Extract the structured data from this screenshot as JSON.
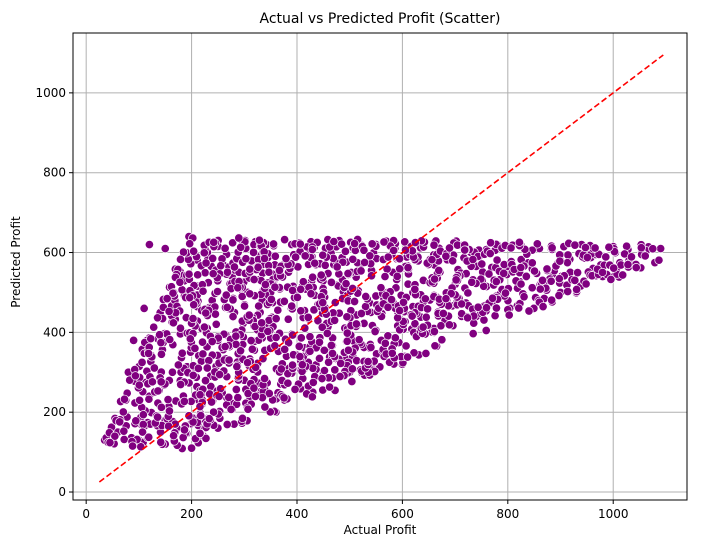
{
  "chart_data": {
    "type": "scatter",
    "title": "Actual vs Predicted Profit (Scatter)",
    "xlabel": "Actual Profit",
    "ylabel": "Predicted Profit",
    "xlim": [
      -25,
      1140
    ],
    "ylim": [
      -20,
      1150
    ],
    "xticks": [
      0,
      200,
      400,
      600,
      800,
      1000
    ],
    "yticks": [
      0,
      200,
      400,
      600,
      800,
      1000
    ],
    "grid": true,
    "colors": {
      "points": "#800080",
      "point_edge": "#ffffff",
      "reference_line": "#ff0000",
      "grid": "#b0b0b0"
    },
    "reference_line": {
      "style": "dashed",
      "x": [
        25,
        1095
      ],
      "y": [
        25,
        1095
      ]
    },
    "point_cloud": {
      "count": 1400,
      "region_vertices": [
        [
          30,
          120
        ],
        [
          195,
          640
        ],
        [
          1095,
          620
        ],
        [
          1090,
          580
        ],
        [
          600,
          320
        ],
        [
          180,
          105
        ]
      ]
    },
    "points": [
      [
        35,
        130
      ],
      [
        60,
        150
      ],
      [
        75,
        230
      ],
      [
        80,
        300
      ],
      [
        90,
        380
      ],
      [
        110,
        460
      ],
      [
        120,
        620
      ],
      [
        150,
        610
      ],
      [
        195,
        640
      ],
      [
        230,
        600
      ],
      [
        300,
        620
      ],
      [
        390,
        620
      ],
      [
        480,
        630
      ],
      [
        570,
        625
      ],
      [
        640,
        620
      ],
      [
        700,
        620
      ],
      [
        780,
        620
      ],
      [
        860,
        610
      ],
      [
        940,
        620
      ],
      [
        1000,
        615
      ],
      [
        1090,
        610
      ],
      [
        1030,
        580
      ],
      [
        980,
        540
      ],
      [
        900,
        500
      ],
      [
        820,
        470
      ],
      [
        740,
        440
      ],
      [
        660,
        400
      ],
      [
        600,
        320
      ],
      [
        560,
        380
      ],
      [
        500,
        300
      ],
      [
        430,
        250
      ],
      [
        360,
        200
      ],
      [
        300,
        180
      ],
      [
        250,
        160
      ],
      [
        200,
        110
      ],
      [
        150,
        120
      ],
      [
        100,
        130
      ],
      [
        180,
        300
      ],
      [
        250,
        380
      ],
      [
        330,
        450
      ],
      [
        420,
        520
      ],
      [
        520,
        560
      ],
      [
        460,
        420
      ],
      [
        380,
        340
      ],
      [
        300,
        280
      ],
      [
        220,
        220
      ],
      [
        150,
        180
      ],
      [
        120,
        240
      ],
      [
        200,
        500
      ],
      [
        280,
        560
      ],
      [
        350,
        500
      ],
      [
        440,
        470
      ],
      [
        540,
        450
      ],
      [
        620,
        500
      ],
      [
        700,
        520
      ],
      [
        800,
        560
      ],
      [
        900,
        580
      ],
      [
        960,
        600
      ]
    ]
  }
}
